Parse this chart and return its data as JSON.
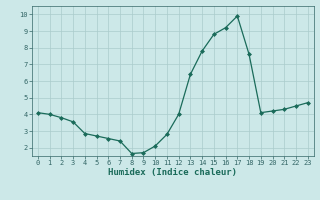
{
  "x": [
    0,
    1,
    2,
    3,
    4,
    5,
    6,
    7,
    8,
    9,
    10,
    11,
    12,
    13,
    14,
    15,
    16,
    17,
    18,
    19,
    20,
    21,
    22,
    23
  ],
  "y": [
    4.1,
    4.0,
    3.8,
    3.55,
    2.85,
    2.7,
    2.55,
    2.4,
    1.65,
    1.7,
    2.1,
    2.8,
    4.0,
    6.4,
    7.8,
    8.8,
    9.2,
    9.9,
    7.6,
    4.1,
    4.2,
    4.3,
    4.5,
    4.7
  ],
  "line_color": "#1a6b5a",
  "marker": "D",
  "marker_size": 2.0,
  "linewidth": 0.9,
  "xlabel": "Humidex (Indice chaleur)",
  "xlim": [
    -0.5,
    23.5
  ],
  "ylim": [
    1.5,
    10.5
  ],
  "yticks": [
    2,
    3,
    4,
    5,
    6,
    7,
    8,
    9,
    10
  ],
  "xticks": [
    0,
    1,
    2,
    3,
    4,
    5,
    6,
    7,
    8,
    9,
    10,
    11,
    12,
    13,
    14,
    15,
    16,
    17,
    18,
    19,
    20,
    21,
    22,
    23
  ],
  "bg_color": "#cce8e8",
  "grid_color": "#aacccc",
  "tick_fontsize": 5.0,
  "xlabel_fontsize": 6.5,
  "spine_color": "#336666"
}
